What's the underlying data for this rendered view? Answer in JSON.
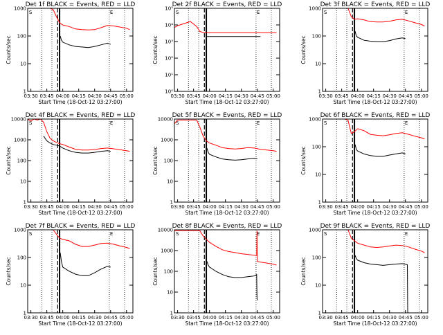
{
  "colors": {
    "events": "#000000",
    "lld": "#ff0000",
    "axis": "#000000"
  },
  "common": {
    "xlabel": "Start Time (18-Oct-12 03:27:00)",
    "ylabel": "Counts/sec",
    "xticks": [
      "03:30",
      "03:45",
      "04:00",
      "04:15",
      "04:30",
      "04:45",
      "05:00"
    ],
    "xtick_min": [
      3.5,
      3.75,
      4.0,
      4.25,
      4.5,
      4.75,
      5.0
    ],
    "xlim_min": [
      3.45,
      5.1
    ],
    "s_label": "S",
    "e_label": "E",
    "dotted_lines_min": [
      3.67,
      3.83,
      4.73,
      4.97
    ],
    "dashed_line_min": 3.92,
    "solid_line_min": 3.95
  },
  "chart_data": [
    {
      "type": "line",
      "title": "Det 1f BLACK = Events, RED = LLD",
      "yscale": "log",
      "ylim": [
        1,
        1000
      ],
      "yticks": [
        "1",
        "10",
        "100",
        "1000"
      ],
      "ytick_vals": [
        1,
        10,
        100,
        1000
      ],
      "series": [
        {
          "color": "#ff0000",
          "x": [
            3.45,
            3.5,
            3.6,
            3.7,
            3.8,
            3.85,
            3.9,
            3.95,
            4.0,
            4.1,
            4.2,
            4.3,
            4.4,
            4.5,
            4.6,
            4.7,
            4.8,
            4.9,
            5.0,
            5.05
          ],
          "y": [
            1000,
            1000,
            1000,
            1000,
            1000,
            900,
            500,
            300,
            250,
            220,
            180,
            170,
            165,
            170,
            200,
            240,
            230,
            210,
            190,
            170
          ]
        },
        {
          "color": "#000000",
          "x": [
            3.96,
            3.98,
            4.0,
            4.1,
            4.2,
            4.3,
            4.4,
            4.5,
            4.6,
            4.7,
            4.75
          ],
          "y": [
            100,
            70,
            60,
            48,
            42,
            40,
            38,
            42,
            48,
            55,
            50
          ]
        }
      ]
    },
    {
      "type": "line",
      "title": "Det 2f BLACK = Events, RED = LLD",
      "yscale": "log",
      "ylim": [
        1,
        100000
      ],
      "yticks": [
        "10⁰",
        "10¹",
        "10²",
        "10³",
        "10⁴",
        "10⁵"
      ],
      "ytick_vals": [
        1,
        10,
        100,
        1000,
        10000,
        100000
      ],
      "series": [
        {
          "color": "#ff0000",
          "x": [
            3.45,
            3.5,
            3.6,
            3.7,
            3.8,
            3.85,
            3.9,
            3.95,
            4.0,
            4.2,
            4.5,
            4.8,
            5.0,
            5.05
          ],
          "y": [
            7000,
            9000,
            12000,
            16000,
            8000,
            4000,
            3500,
            3400,
            3400,
            3400,
            3400,
            3400,
            3400,
            3400
          ]
        },
        {
          "color": "#000000",
          "x": [
            3.96,
            4.0,
            4.2,
            4.5,
            4.7,
            4.8
          ],
          "y": [
            2000,
            2000,
            2000,
            2000,
            2000,
            2000
          ]
        }
      ]
    },
    {
      "type": "line",
      "title": "Det 3f BLACK = Events, RED = LLD",
      "yscale": "log",
      "ylim": [
        1,
        1000
      ],
      "yticks": [
        "1",
        "10",
        "100",
        "1000"
      ],
      "ytick_vals": [
        1,
        10,
        100,
        1000
      ],
      "series": [
        {
          "color": "#ff0000",
          "x": [
            3.45,
            3.5,
            3.6,
            3.7,
            3.8,
            3.85,
            3.9,
            3.95,
            4.0,
            4.1,
            4.2,
            4.3,
            4.4,
            4.5,
            4.6,
            4.7,
            4.8,
            4.9,
            5.0,
            5.05
          ],
          "y": [
            1000,
            1000,
            1000,
            1000,
            1000,
            1000,
            500,
            400,
            420,
            380,
            330,
            320,
            320,
            340,
            380,
            400,
            350,
            300,
            260,
            230
          ]
        },
        {
          "color": "#000000",
          "x": [
            3.96,
            3.98,
            4.0,
            4.1,
            4.2,
            4.3,
            4.4,
            4.5,
            4.6,
            4.7,
            4.75
          ],
          "y": [
            150,
            100,
            90,
            70,
            65,
            62,
            62,
            68,
            78,
            85,
            80
          ]
        }
      ]
    },
    {
      "type": "line",
      "title": "Det 4f BLACK = Events, RED = LLD",
      "yscale": "log",
      "ylim": [
        1,
        10000
      ],
      "yticks": [
        "1",
        "10",
        "100",
        "1000",
        "10000"
      ],
      "ytick_vals": [
        1,
        10,
        100,
        1000,
        10000
      ],
      "series": [
        {
          "color": "#ff0000",
          "x": [
            3.45,
            3.5,
            3.55,
            3.6,
            3.65,
            3.7,
            3.75,
            3.8,
            3.85,
            3.9,
            3.95,
            4.0,
            4.1,
            4.2,
            4.3,
            4.4,
            4.5,
            4.6,
            4.7,
            4.8,
            4.9,
            5.0,
            5.05
          ],
          "y": [
            10000,
            8000,
            10000,
            9000,
            10000,
            7000,
            2500,
            1200,
            900,
            750,
            650,
            600,
            450,
            350,
            320,
            320,
            340,
            380,
            400,
            370,
            330,
            300,
            280
          ]
        },
        {
          "color": "#000000",
          "x": [
            3.7,
            3.75,
            3.8,
            3.85,
            3.9,
            3.95,
            4.0,
            4.1,
            4.2,
            4.3,
            4.4,
            4.5,
            4.6,
            4.7,
            4.75
          ],
          "y": [
            1500,
            900,
            700,
            600,
            550,
            500,
            400,
            300,
            250,
            230,
            230,
            250,
            280,
            300,
            280
          ]
        }
      ]
    },
    {
      "type": "line",
      "title": "Det 5f BLACK = Events, RED = LLD",
      "yscale": "log",
      "ylim": [
        1,
        10000
      ],
      "yticks": [
        "1",
        "10",
        "100",
        "1000",
        "10000"
      ],
      "ytick_vals": [
        1,
        10,
        100,
        1000,
        10000
      ],
      "series": [
        {
          "color": "#ff0000",
          "x": [
            3.45,
            3.5,
            3.6,
            3.7,
            3.8,
            3.85,
            3.9,
            3.95,
            4.0,
            4.1,
            4.2,
            4.3,
            4.4,
            4.5,
            4.6,
            4.7,
            4.8,
            4.9,
            5.0,
            5.05
          ],
          "y": [
            6000,
            9000,
            9000,
            9000,
            9000,
            4000,
            1500,
            900,
            700,
            550,
            420,
            380,
            360,
            380,
            420,
            400,
            350,
            320,
            300,
            280
          ]
        },
        {
          "color": "#000000",
          "x": [
            3.96,
            3.98,
            4.0,
            4.1,
            4.2,
            4.3,
            4.4,
            4.5,
            4.6,
            4.7,
            4.75
          ],
          "y": [
            400,
            250,
            200,
            150,
            120,
            110,
            105,
            110,
            120,
            130,
            120
          ]
        }
      ]
    },
    {
      "type": "line",
      "title": "Det 6f BLACK = Events, RED = LLD",
      "yscale": "log",
      "ylim": [
        1,
        1000
      ],
      "yticks": [
        "1",
        "10",
        "100",
        "1000"
      ],
      "ytick_vals": [
        1,
        10,
        100,
        1000
      ],
      "series": [
        {
          "color": "#ff0000",
          "x": [
            3.45,
            3.5,
            3.6,
            3.7,
            3.8,
            3.85,
            3.9,
            3.95,
            4.0,
            4.1,
            4.2,
            4.3,
            4.4,
            4.5,
            4.6,
            4.7,
            4.8,
            4.9,
            5.0,
            5.05
          ],
          "y": [
            1000,
            1000,
            1000,
            1000,
            1000,
            900,
            300,
            350,
            450,
            380,
            280,
            260,
            250,
            270,
            300,
            320,
            280,
            240,
            210,
            190
          ]
        },
        {
          "color": "#000000",
          "x": [
            3.96,
            3.98,
            4.0,
            4.1,
            4.2,
            4.3,
            4.4,
            4.5,
            4.6,
            4.7,
            4.75
          ],
          "y": [
            120,
            80,
            70,
            55,
            48,
            45,
            45,
            50,
            55,
            60,
            55
          ]
        }
      ]
    },
    {
      "type": "line",
      "title": "Det 7f BLACK = Events, RED = LLD",
      "yscale": "log",
      "ylim": [
        1,
        1000
      ],
      "yticks": [
        "1",
        "10",
        "100",
        "1000"
      ],
      "ytick_vals": [
        1,
        10,
        100,
        1000
      ],
      "series": [
        {
          "color": "#ff0000",
          "x": [
            3.45,
            3.5,
            3.6,
            3.7,
            3.8,
            3.85,
            3.9,
            3.95,
            4.0,
            4.1,
            4.2,
            4.3,
            4.4,
            4.5,
            4.6,
            4.7,
            4.8,
            4.9,
            5.0,
            5.05
          ],
          "y": [
            1000,
            1000,
            1000,
            1000,
            1000,
            1000,
            700,
            500,
            450,
            400,
            300,
            250,
            250,
            280,
            320,
            330,
            300,
            260,
            230,
            210
          ]
        },
        {
          "color": "#000000",
          "x": [
            3.96,
            3.98,
            4.0,
            4.1,
            4.2,
            4.3,
            4.4,
            4.5,
            4.6,
            4.7,
            4.75
          ],
          "y": [
            150,
            70,
            45,
            32,
            25,
            22,
            22,
            28,
            38,
            48,
            45
          ]
        }
      ]
    },
    {
      "type": "line",
      "title": "Det 8f BLACK = Events, RED = LLD",
      "yscale": "log",
      "ylim": [
        1,
        10000
      ],
      "yticks": [
        "1",
        "10",
        "100",
        "1000",
        "10000"
      ],
      "ytick_vals": [
        1,
        10,
        100,
        1000,
        10000
      ],
      "series": [
        {
          "color": "#ff0000",
          "x": [
            3.45,
            3.5,
            3.6,
            3.7,
            3.8,
            3.85,
            3.9,
            3.95,
            4.0,
            4.1,
            4.2,
            4.3,
            4.4,
            4.5,
            4.6,
            4.7,
            4.74,
            4.745,
            4.75,
            4.8,
            4.9,
            5.0,
            5.05
          ],
          "y": [
            9000,
            9000,
            9000,
            9000,
            9000,
            9000,
            5000,
            3500,
            2500,
            1600,
            1100,
            900,
            800,
            700,
            650,
            600,
            580,
            9000,
            300,
            280,
            250,
            220,
            200
          ]
        },
        {
          "color": "#000000",
          "x": [
            3.96,
            3.98,
            4.0,
            4.1,
            4.2,
            4.3,
            4.4,
            4.5,
            4.6,
            4.7,
            4.74,
            4.745,
            4.75
          ],
          "y": [
            300,
            200,
            160,
            100,
            70,
            55,
            50,
            50,
            55,
            60,
            70,
            5,
            4
          ]
        }
      ]
    },
    {
      "type": "line",
      "title": "Det 9f BLACK = Events, RED = LLD",
      "yscale": "log",
      "ylim": [
        1,
        1000
      ],
      "yticks": [
        "1",
        "10",
        "100",
        "1000"
      ],
      "ytick_vals": [
        1,
        10,
        100,
        1000
      ],
      "series": [
        {
          "color": "#ff0000",
          "x": [
            3.45,
            3.5,
            3.6,
            3.7,
            3.8,
            3.85,
            3.9,
            3.95,
            4.0,
            4.1,
            4.2,
            4.3,
            4.4,
            4.5,
            4.6,
            4.7,
            4.8,
            4.9,
            5.0,
            5.05
          ],
          "y": [
            1000,
            1000,
            1000,
            1000,
            1000,
            1000,
            500,
            400,
            330,
            280,
            240,
            230,
            240,
            260,
            280,
            270,
            240,
            200,
            170,
            150
          ]
        },
        {
          "color": "#000000",
          "x": [
            3.96,
            3.98,
            4.0,
            4.1,
            4.2,
            4.3,
            4.4,
            4.5,
            4.6,
            4.7,
            4.78,
            4.785,
            4.79
          ],
          "y": [
            120,
            90,
            80,
            65,
            58,
            55,
            52,
            55,
            58,
            60,
            55,
            1.1,
            1
          ]
        }
      ]
    }
  ]
}
